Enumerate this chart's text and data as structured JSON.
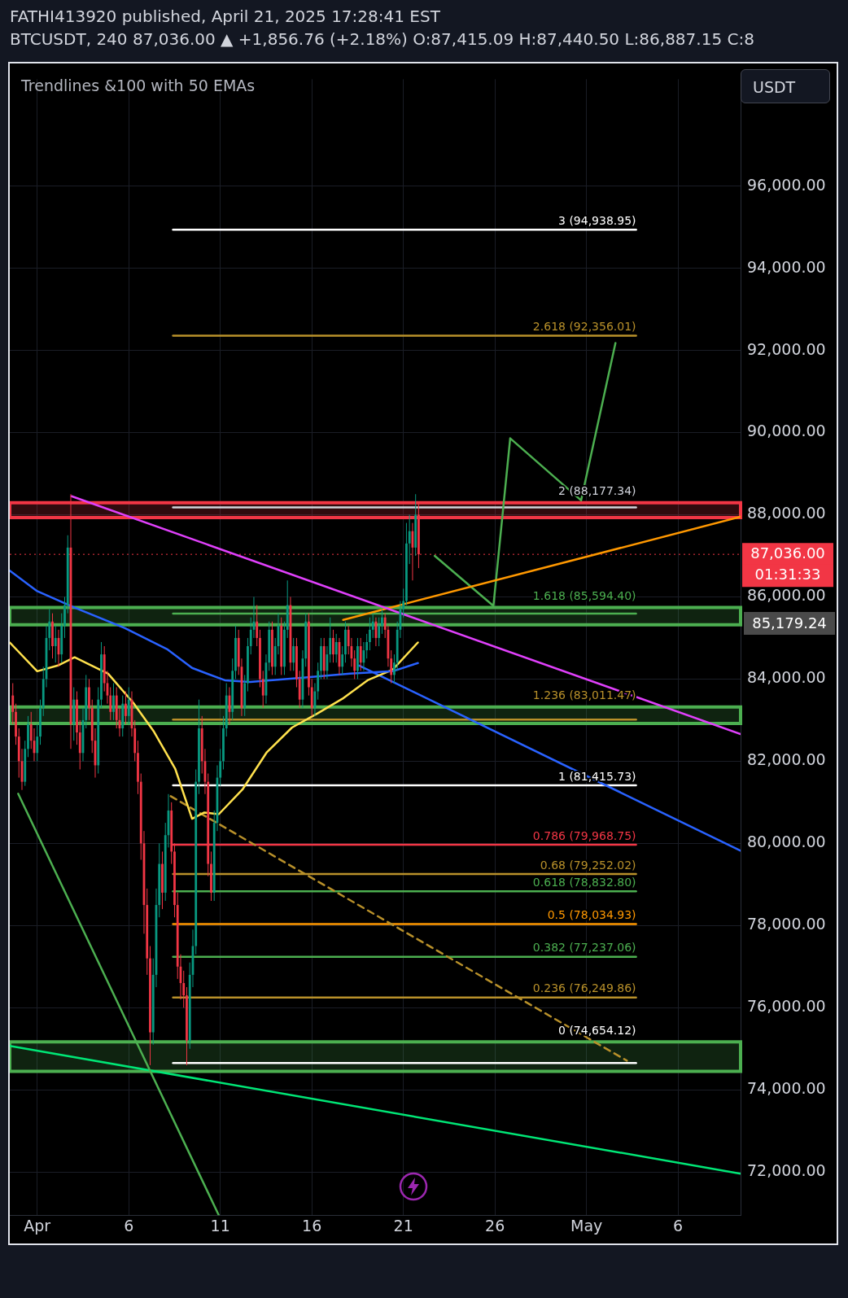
{
  "chart_data": {
    "type": "candlestick",
    "title": "Trendlines &100 with 50 EMAs",
    "annotations": [
      "FATHI413920 published, April 21, 2025 17:28:41 EST",
      "BTCUSDT, 240  87,036.00 ▲ +1,856.76 (+2.18%) O:87,415.09 H:87,440.50 L:86,887.15 C:8",
      "USDT",
      "01:31:33",
      "85,179.24"
    ],
    "x": [
      "2025-03-30T16:00",
      "2025-03-30T20:00",
      "2025-03-31T00:00",
      "2025-03-31T04:00",
      "2025-03-31T08:00",
      "2025-03-31T12:00",
      "2025-03-31T16:00",
      "2025-03-31T20:00",
      "2025-04-01T00:00",
      "2025-04-01T04:00",
      "2025-04-01T08:00",
      "2025-04-01T12:00",
      "2025-04-01T16:00",
      "2025-04-01T20:00",
      "2025-04-02T00:00",
      "2025-04-02T04:00",
      "2025-04-02T08:00",
      "2025-04-02T12:00",
      "2025-04-02T16:00",
      "2025-04-02T20:00",
      "2025-04-03T00:00",
      "2025-04-03T04:00",
      "2025-04-03T08:00",
      "2025-04-03T12:00",
      "2025-04-03T16:00",
      "2025-04-03T20:00",
      "2025-04-04T00:00",
      "2025-04-04T04:00",
      "2025-04-04T08:00",
      "2025-04-04T12:00",
      "2025-04-04T16:00",
      "2025-04-04T20:00",
      "2025-04-05T00:00",
      "2025-04-05T04:00",
      "2025-04-05T08:00",
      "2025-04-05T12:00",
      "2025-04-05T16:00",
      "2025-04-05T20:00",
      "2025-04-06T00:00",
      "2025-04-06T04:00",
      "2025-04-06T08:00",
      "2025-04-06T12:00",
      "2025-04-06T16:00",
      "2025-04-06T20:00",
      "2025-04-07T00:00",
      "2025-04-07T04:00",
      "2025-04-07T08:00",
      "2025-04-07T12:00",
      "2025-04-07T16:00",
      "2025-04-07T20:00",
      "2025-04-08T00:00",
      "2025-04-08T04:00",
      "2025-04-08T08:00",
      "2025-04-08T12:00",
      "2025-04-08T16:00",
      "2025-04-08T20:00",
      "2025-04-09T00:00",
      "2025-04-09T04:00",
      "2025-04-09T08:00",
      "2025-04-09T12:00",
      "2025-04-09T16:00",
      "2025-04-09T20:00",
      "2025-04-10T00:00",
      "2025-04-10T04:00",
      "2025-04-10T08:00",
      "2025-04-10T12:00",
      "2025-04-10T16:00",
      "2025-04-10T20:00",
      "2025-04-11T00:00",
      "2025-04-11T04:00",
      "2025-04-11T08:00",
      "2025-04-11T12:00",
      "2025-04-11T16:00",
      "2025-04-11T20:00",
      "2025-04-12T00:00",
      "2025-04-12T04:00",
      "2025-04-12T08:00",
      "2025-04-12T12:00",
      "2025-04-12T16:00",
      "2025-04-12T20:00",
      "2025-04-13T00:00",
      "2025-04-13T04:00",
      "2025-04-13T08:00",
      "2025-04-13T12:00",
      "2025-04-13T16:00",
      "2025-04-13T20:00",
      "2025-04-14T00:00",
      "2025-04-14T04:00",
      "2025-04-14T08:00",
      "2025-04-14T12:00",
      "2025-04-14T16:00",
      "2025-04-14T20:00",
      "2025-04-15T00:00",
      "2025-04-15T04:00",
      "2025-04-15T08:00",
      "2025-04-15T12:00",
      "2025-04-15T16:00",
      "2025-04-15T20:00",
      "2025-04-16T00:00",
      "2025-04-16T04:00",
      "2025-04-16T08:00",
      "2025-04-16T12:00",
      "2025-04-16T16:00",
      "2025-04-16T20:00",
      "2025-04-17T00:00",
      "2025-04-17T04:00",
      "2025-04-17T08:00",
      "2025-04-17T12:00",
      "2025-04-17T16:00",
      "2025-04-17T20:00",
      "2025-04-18T00:00",
      "2025-04-18T04:00",
      "2025-04-18T08:00",
      "2025-04-18T12:00",
      "2025-04-18T16:00",
      "2025-04-18T20:00",
      "2025-04-19T00:00",
      "2025-04-19T04:00",
      "2025-04-19T08:00",
      "2025-04-19T12:00",
      "2025-04-19T16:00",
      "2025-04-19T20:00",
      "2025-04-20T00:00",
      "2025-04-20T04:00",
      "2025-04-20T08:00",
      "2025-04-20T12:00",
      "2025-04-20T16:00",
      "2025-04-20T20:00",
      "2025-04-21T00:00",
      "2025-04-21T04:00",
      "2025-04-21T08:00",
      "2025-04-21T12:00",
      "2025-04-21T16:00",
      "2025-04-21T20:00"
    ],
    "ohlc": [
      [
        83600,
        83900,
        82900,
        83200
      ],
      [
        83200,
        83400,
        82400,
        82600
      ],
      [
        82600,
        82800,
        81600,
        82000
      ],
      [
        82000,
        82300,
        81300,
        81500
      ],
      [
        81500,
        82500,
        81400,
        82300
      ],
      [
        82300,
        83100,
        82100,
        82900
      ],
      [
        82900,
        83200,
        82300,
        82500
      ],
      [
        82500,
        82800,
        82000,
        82200
      ],
      [
        82200,
        82900,
        82000,
        82600
      ],
      [
        82600,
        83500,
        82400,
        83300
      ],
      [
        83300,
        84300,
        83100,
        84000
      ],
      [
        84000,
        85300,
        83800,
        85000
      ],
      [
        85000,
        85700,
        84700,
        85400
      ],
      [
        85400,
        85600,
        84500,
        84800
      ],
      [
        84800,
        85300,
        84400,
        85000
      ],
      [
        85000,
        85200,
        84300,
        84600
      ],
      [
        84600,
        85600,
        84400,
        85300
      ],
      [
        85300,
        86000,
        85000,
        85800
      ],
      [
        85800,
        87500,
        85600,
        87200
      ],
      [
        87200,
        88500,
        82300,
        82900
      ],
      [
        82900,
        83800,
        82500,
        83500
      ],
      [
        83500,
        83700,
        82400,
        82700
      ],
      [
        82700,
        83000,
        81800,
        82200
      ],
      [
        82200,
        83300,
        82000,
        83000
      ],
      [
        83000,
        84100,
        82800,
        83800
      ],
      [
        83800,
        84000,
        83000,
        83300
      ],
      [
        83300,
        83500,
        82200,
        82500
      ],
      [
        82500,
        82800,
        81600,
        81900
      ],
      [
        81900,
        83800,
        81700,
        83500
      ],
      [
        83500,
        84900,
        83300,
        84600
      ],
      [
        84600,
        84800,
        83700,
        83900
      ],
      [
        83900,
        84200,
        83400,
        83600
      ],
      [
        83600,
        83800,
        83000,
        83200
      ],
      [
        83200,
        83900,
        83000,
        83600
      ],
      [
        83600,
        83800,
        82800,
        83000
      ],
      [
        83000,
        83300,
        82600,
        82800
      ],
      [
        82800,
        83600,
        82600,
        83400
      ],
      [
        83400,
        83700,
        82900,
        83100
      ],
      [
        83100,
        83800,
        82900,
        83500
      ],
      [
        83500,
        83700,
        82600,
        82800
      ],
      [
        82800,
        83000,
        82000,
        82200
      ],
      [
        82200,
        82500,
        81200,
        81500
      ],
      [
        81500,
        81700,
        79600,
        80000
      ],
      [
        80000,
        80300,
        77800,
        78500
      ],
      [
        78500,
        78900,
        76800,
        77200
      ],
      [
        77200,
        77500,
        74600,
        75400
      ],
      [
        75400,
        77200,
        75100,
        76800
      ],
      [
        76800,
        78900,
        76500,
        78500
      ],
      [
        78500,
        80000,
        78200,
        79500
      ],
      [
        79500,
        79800,
        78400,
        78800
      ],
      [
        78800,
        80500,
        78600,
        80200
      ],
      [
        80200,
        81200,
        79900,
        80800
      ],
      [
        80800,
        81000,
        79500,
        79800
      ],
      [
        79800,
        80000,
        78200,
        78500
      ],
      [
        78500,
        78800,
        76700,
        77000
      ],
      [
        77000,
        77300,
        76200,
        76600
      ],
      [
        76600,
        76900,
        76000,
        76300
      ],
      [
        76300,
        76500,
        74600,
        75200
      ],
      [
        75200,
        77100,
        75000,
        76800
      ],
      [
        76800,
        77900,
        76500,
        77500
      ],
      [
        77500,
        81800,
        77300,
        81500
      ],
      [
        81500,
        83500,
        81200,
        82800
      ],
      [
        82800,
        83100,
        81700,
        82000
      ],
      [
        82000,
        82300,
        81200,
        81500
      ],
      [
        81500,
        81700,
        79200,
        79500
      ],
      [
        79500,
        79800,
        78600,
        78800
      ],
      [
        78800,
        80800,
        78600,
        80500
      ],
      [
        80500,
        81900,
        80300,
        81600
      ],
      [
        81600,
        82300,
        81400,
        82000
      ],
      [
        82000,
        83100,
        81800,
        82800
      ],
      [
        82800,
        83900,
        82600,
        83600
      ],
      [
        83600,
        83800,
        82900,
        83200
      ],
      [
        83200,
        84500,
        83000,
        84200
      ],
      [
        84200,
        85300,
        84000,
        85000
      ],
      [
        85000,
        85200,
        84100,
        84300
      ],
      [
        84300,
        84500,
        83100,
        83300
      ],
      [
        83300,
        84100,
        83100,
        83900
      ],
      [
        83900,
        85000,
        83700,
        84800
      ],
      [
        84800,
        85500,
        84600,
        85200
      ],
      [
        85200,
        86000,
        85000,
        85400
      ],
      [
        85400,
        85800,
        84800,
        85000
      ],
      [
        85000,
        85200,
        83800,
        84000
      ],
      [
        84000,
        84200,
        83300,
        83600
      ],
      [
        83600,
        84600,
        83400,
        84400
      ],
      [
        84400,
        85400,
        84200,
        85200
      ],
      [
        85200,
        85400,
        84100,
        84300
      ],
      [
        84300,
        85000,
        84100,
        84800
      ],
      [
        84800,
        85600,
        84600,
        85300
      ],
      [
        85300,
        85500,
        84100,
        84300
      ],
      [
        84300,
        85400,
        84100,
        85200
      ],
      [
        85200,
        86400,
        85000,
        85800
      ],
      [
        85800,
        86000,
        84200,
        84400
      ],
      [
        84400,
        85000,
        84200,
        84800
      ],
      [
        84800,
        85000,
        83800,
        84000
      ],
      [
        84000,
        84200,
        83300,
        83500
      ],
      [
        83500,
        84700,
        83300,
        84500
      ],
      [
        84500,
        85600,
        84300,
        85400
      ],
      [
        85400,
        85600,
        83600,
        83800
      ],
      [
        83800,
        84000,
        83100,
        83300
      ],
      [
        83300,
        83900,
        83100,
        83700
      ],
      [
        83700,
        84400,
        83500,
        84200
      ],
      [
        84200,
        85000,
        84000,
        84800
      ],
      [
        84800,
        85000,
        84000,
        84200
      ],
      [
        84200,
        84800,
        84000,
        84600
      ],
      [
        84600,
        85500,
        84400,
        85000
      ],
      [
        85000,
        85200,
        84400,
        84600
      ],
      [
        84600,
        85100,
        84400,
        84900
      ],
      [
        84900,
        85000,
        84100,
        84300
      ],
      [
        84300,
        84800,
        84100,
        84600
      ],
      [
        84600,
        85400,
        84400,
        85200
      ],
      [
        85200,
        85300,
        84600,
        84800
      ],
      [
        84800,
        85000,
        84300,
        84500
      ],
      [
        84500,
        84700,
        84000,
        84200
      ],
      [
        84200,
        85000,
        84000,
        84800
      ],
      [
        84800,
        85000,
        84200,
        84400
      ],
      [
        84400,
        84900,
        84200,
        84700
      ],
      [
        84700,
        85100,
        84500,
        84900
      ],
      [
        84900,
        85500,
        84700,
        85200
      ],
      [
        85200,
        85600,
        85000,
        85400
      ],
      [
        85400,
        85500,
        84800,
        85000
      ],
      [
        85000,
        85500,
        84800,
        85300
      ],
      [
        85300,
        85700,
        85100,
        85500
      ],
      [
        85500,
        85600,
        85000,
        85200
      ],
      [
        85200,
        85300,
        84300,
        84500
      ],
      [
        84500,
        84700,
        83900,
        84100
      ],
      [
        84100,
        84600,
        83900,
        84400
      ],
      [
        84400,
        85400,
        84200,
        85200
      ],
      [
        85200,
        85900,
        85000,
        85700
      ],
      [
        85700,
        86200,
        85500,
        85900
      ],
      [
        85900,
        87800,
        85800,
        87300
      ],
      [
        87300,
        88000,
        86800,
        87600
      ],
      [
        87600,
        87800,
        86400,
        87200
      ],
      [
        87200,
        88500,
        87000,
        88000
      ],
      [
        88000,
        88300,
        86700,
        87036
      ]
    ],
    "xlim": [
      "2025-03-30T12:00",
      "2025-05-09T10:00"
    ],
    "xticks": [
      {
        "value": "2025-04-01",
        "label": "Apr"
      },
      {
        "value": "2025-04-06",
        "label": "6"
      },
      {
        "value": "2025-04-11",
        "label": "11"
      },
      {
        "value": "2025-04-16",
        "label": "16"
      },
      {
        "value": "2025-04-21",
        "label": "21"
      },
      {
        "value": "2025-04-26",
        "label": "26"
      },
      {
        "value": "2025-05-01",
        "label": "May"
      },
      {
        "value": "2025-05-06",
        "label": "6"
      }
    ],
    "ylim": [
      70950,
      98600
    ],
    "yticks": [
      {
        "value": 72000,
        "label": "72,000.00"
      },
      {
        "value": 74000,
        "label": "74,000.00"
      },
      {
        "value": 76000,
        "label": "76,000.00"
      },
      {
        "value": 78000,
        "label": "78,000.00"
      },
      {
        "value": 80000,
        "label": "80,000.00"
      },
      {
        "value": 82000,
        "label": "82,000.00"
      },
      {
        "value": 84000,
        "label": "84,000.00"
      },
      {
        "value": 86000,
        "label": "86,000.00"
      },
      {
        "value": 88000,
        "label": "88,000.00"
      },
      {
        "value": 90000,
        "label": "90,000.00"
      },
      {
        "value": 92000,
        "label": "92,000.00"
      },
      {
        "value": 94000,
        "label": "94,000.00"
      },
      {
        "value": 96000,
        "label": "96,000.00"
      }
    ],
    "grid": true,
    "marker": "none",
    "ref_lines": [
      {
        "axis": "y",
        "value": 87036,
        "label": "87,036.00",
        "color": "#f23645",
        "line_style": "dotted"
      }
    ],
    "bands": [
      {
        "axis": "y",
        "from": 87930,
        "to": 88290,
        "color": "#f23645"
      },
      {
        "axis": "y",
        "from": 85320,
        "to": 85740,
        "color": "#4caf50"
      },
      {
        "axis": "y",
        "from": 82920,
        "to": 83320,
        "color": "#4caf50"
      },
      {
        "axis": "y",
        "from": 74450,
        "to": 75170,
        "color": "#4caf50"
      }
    ],
    "series": [
      {
        "type": "line",
        "color": "#2962ff",
        "x": [
          "2025-03-30T12:00",
          "2025-04-01T00:00",
          "2025-04-03T01:00",
          "2025-04-05T19:00",
          "2025-04-08T02:00",
          "2025-04-09T11:00",
          "2025-04-11T06:00",
          "2025-04-12T15:00",
          "2025-04-15T09:00",
          "2025-04-18T02:00",
          "2025-04-20T10:00",
          "2025-04-21T19:00"
        ],
        "values": [
          86640,
          86140,
          85740,
          85240,
          84730,
          84270,
          83970,
          83930,
          84030,
          84130,
          84190,
          84390
        ]
      },
      {
        "type": "line",
        "color": "#ffe14d",
        "x": [
          "2025-03-30T12:00",
          "2025-04-01T00:00",
          "2025-04-02T03:00",
          "2025-04-03T01:00",
          "2025-04-04T21:00",
          "2025-04-06T06:00",
          "2025-04-07T09:00",
          "2025-04-08T13:00",
          "2025-04-09T11:00",
          "2025-04-10T03:00",
          "2025-04-10T22:00",
          "2025-04-12T05:00",
          "2025-04-13T13:00",
          "2025-04-14T22:00",
          "2025-04-16T07:00",
          "2025-04-17T16:00",
          "2025-04-19T01:00",
          "2025-04-20T10:00",
          "2025-04-21T19:00"
        ],
        "values": [
          84890,
          84190,
          84330,
          84530,
          84130,
          83420,
          82720,
          81810,
          80600,
          80750,
          80710,
          81310,
          82220,
          82820,
          83160,
          83520,
          83970,
          84230,
          84890
        ]
      },
      {
        "type": "line",
        "color": "#e040fb",
        "x": [
          "2025-04-02T21:00",
          "2025-05-09T10:00"
        ],
        "values": [
          88450,
          82660
        ]
      },
      {
        "type": "line",
        "color": "#2962ff",
        "x": [
          "2025-04-18T14:00",
          "2025-05-09T10:00"
        ],
        "values": [
          84330,
          79820
        ]
      },
      {
        "type": "line",
        "color": "#ff9800",
        "x": [
          "2025-04-17T17:00",
          "2025-05-09T10:00"
        ],
        "values": [
          85440,
          87950
        ]
      },
      {
        "type": "line",
        "color": "#4caf50",
        "x": [
          "2025-03-30T23:00",
          "2025-04-10T22:00"
        ],
        "values": [
          81210,
          70950
        ]
      },
      {
        "type": "line",
        "color": "#00e676",
        "x": [
          "2025-03-30T12:00",
          "2025-05-09T10:00"
        ],
        "values": [
          75070,
          71960
        ]
      },
      {
        "type": "line",
        "color": "#b8902a",
        "line_style": "dashed",
        "x": [
          "2025-04-08T07:00",
          "2025-05-03T05:00"
        ],
        "values": [
          81150,
          74710
        ]
      },
      {
        "type": "line",
        "color": "#4caf50",
        "x": [
          "2025-04-22T17:00",
          "2025-04-25T22:00",
          "2025-04-26T20:00",
          "2025-04-30T17:00",
          "2025-05-02T14:00"
        ],
        "values": [
          87000,
          85780,
          89860,
          88350,
          92180
        ]
      },
      {
        "type": "line",
        "name": "3 (94,938.95)",
        "color": "#ffffff",
        "x": [
          "2025-04-08T10:00",
          "2025-05-03T17:00"
        ],
        "values": [
          94938.95,
          94938.95
        ]
      },
      {
        "type": "line",
        "name": "2.618 (92,356.01)",
        "color": "#b8902a",
        "x": [
          "2025-04-08T10:00",
          "2025-05-03T17:00"
        ],
        "values": [
          92356.01,
          92356.01
        ]
      },
      {
        "type": "line",
        "name": "2 (88,177.34)",
        "color": "#d1d4dc",
        "x": [
          "2025-04-08T10:00",
          "2025-05-03T17:00"
        ],
        "values": [
          88177.34,
          88177.34
        ]
      },
      {
        "type": "line",
        "name": "1.618 (85,594.40)",
        "color": "#4caf50",
        "x": [
          "2025-04-08T10:00",
          "2025-05-03T17:00"
        ],
        "values": [
          85594.4,
          85594.4
        ]
      },
      {
        "type": "line",
        "name": "1.236 (83,011.47)",
        "color": "#b8902a",
        "x": [
          "2025-04-08T10:00",
          "2025-05-03T17:00"
        ],
        "values": [
          83011.47,
          83011.47
        ]
      },
      {
        "type": "line",
        "name": "1 (81,415.73)",
        "color": "#ffffff",
        "x": [
          "2025-04-08T10:00",
          "2025-05-03T17:00"
        ],
        "values": [
          81415.73,
          81415.73
        ]
      },
      {
        "type": "line",
        "name": "0.786 (79,968.75)",
        "color": "#f23645",
        "x": [
          "2025-04-08T10:00",
          "2025-05-03T17:00"
        ],
        "values": [
          79968.75,
          79968.75
        ]
      },
      {
        "type": "line",
        "name": "0.68 (79,252.02)",
        "color": "#b8902a",
        "x": [
          "2025-04-08T10:00",
          "2025-05-03T17:00"
        ],
        "values": [
          79252.02,
          79252.02
        ]
      },
      {
        "type": "line",
        "name": "0.618 (78,832.80)",
        "color": "#4caf50",
        "x": [
          "2025-04-08T10:00",
          "2025-05-03T17:00"
        ],
        "values": [
          78832.8,
          78832.8
        ]
      },
      {
        "type": "line",
        "name": "0.5 (78,034.93)",
        "color": "#ff9800",
        "x": [
          "2025-04-08T10:00",
          "2025-05-03T17:00"
        ],
        "values": [
          78034.93,
          78034.93
        ]
      },
      {
        "type": "line",
        "name": "0.382 (77,237.06)",
        "color": "#4caf50",
        "x": [
          "2025-04-08T10:00",
          "2025-05-03T17:00"
        ],
        "values": [
          77237.06,
          77237.06
        ]
      },
      {
        "type": "line",
        "name": "0.236 (76,249.86)",
        "color": "#b8902a",
        "x": [
          "2025-04-08T10:00",
          "2025-05-03T17:00"
        ],
        "values": [
          76249.86,
          76249.86
        ]
      },
      {
        "type": "line",
        "name": "0 (74,654.12)",
        "color": "#ffffff",
        "x": [
          "2025-04-08T10:00",
          "2025-05-03T17:00"
        ],
        "values": [
          74654.12,
          74654.12
        ]
      }
    ]
  }
}
